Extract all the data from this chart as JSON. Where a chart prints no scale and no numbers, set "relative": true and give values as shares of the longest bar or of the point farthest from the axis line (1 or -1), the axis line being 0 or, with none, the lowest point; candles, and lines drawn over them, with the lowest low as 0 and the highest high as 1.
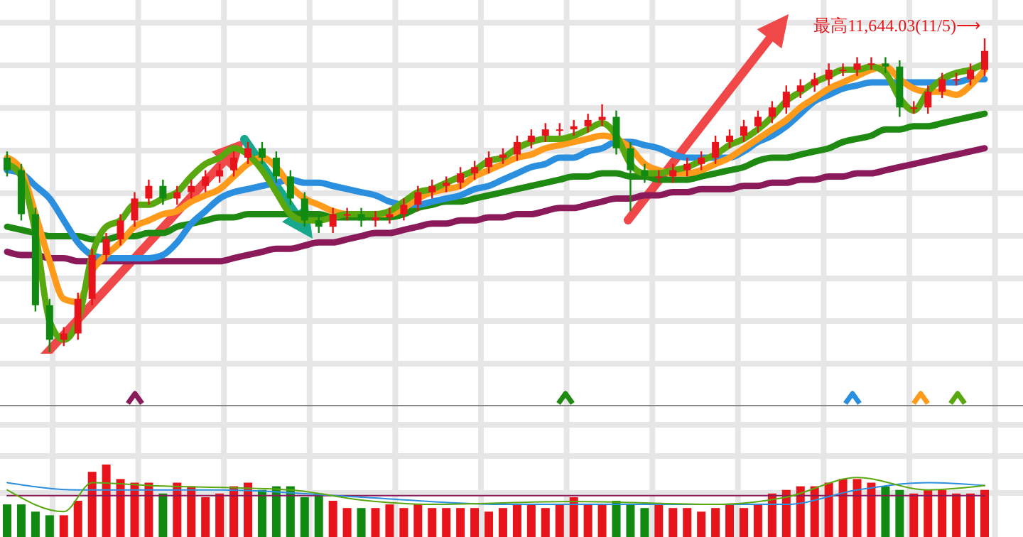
{
  "chart_data": [
    {
      "type": "candlestick",
      "relative": true,
      "grid": true,
      "categories": [
        null,
        null,
        null,
        null,
        null,
        null,
        null,
        null,
        null,
        null,
        null,
        null,
        null,
        null,
        null,
        null,
        null,
        null,
        null,
        null,
        null,
        null,
        null,
        null,
        null,
        null,
        null,
        null,
        null,
        null,
        null,
        null,
        null,
        null,
        null,
        null,
        null,
        null,
        null,
        null,
        null,
        null,
        null,
        null,
        null,
        null,
        null,
        null,
        null,
        null,
        null,
        null,
        null,
        null,
        null,
        null,
        null,
        null,
        null,
        null,
        null,
        null,
        null,
        null,
        null,
        null,
        null,
        null,
        null,
        null
      ],
      "ohlc": [
        [
          0.62,
          0.64,
          0.56,
          0.58
        ],
        [
          0.58,
          0.6,
          0.42,
          0.44
        ],
        [
          0.44,
          0.46,
          0.13,
          0.15
        ],
        [
          0.15,
          0.17,
          0,
          0.04
        ],
        [
          0.04,
          0.08,
          0.02,
          0.06
        ],
        [
          0.06,
          0.19,
          0.04,
          0.17
        ],
        [
          0.17,
          0.33,
          0.15,
          0.31
        ],
        [
          0.31,
          0.38,
          0.29,
          0.36
        ],
        [
          0.36,
          0.44,
          0.34,
          0.42
        ],
        [
          0.42,
          0.51,
          0.4,
          0.49
        ],
        [
          0.49,
          0.55,
          0.47,
          0.53
        ],
        [
          0.53,
          0.55,
          0.47,
          0.49
        ],
        [
          0.49,
          0.53,
          0.47,
          0.51
        ],
        [
          0.51,
          0.55,
          0.49,
          0.53
        ],
        [
          0.53,
          0.58,
          0.51,
          0.56
        ],
        [
          0.56,
          0.6,
          0.54,
          0.58
        ],
        [
          0.58,
          0.64,
          0.56,
          0.62
        ],
        [
          0.62,
          0.67,
          0.6,
          0.65
        ],
        [
          0.65,
          0.67,
          0.6,
          0.62
        ],
        [
          0.62,
          0.64,
          0.54,
          0.56
        ],
        [
          0.56,
          0.58,
          0.47,
          0.49
        ],
        [
          0.49,
          0.51,
          0.4,
          0.42
        ],
        [
          0.42,
          0.44,
          0.38,
          0.4
        ],
        [
          0.4,
          0.46,
          0.38,
          0.44
        ],
        [
          0.44,
          0.46,
          0.42,
          0.44
        ],
        [
          0.44,
          0.46,
          0.4,
          0.42
        ],
        [
          0.42,
          0.45,
          0.4,
          0.43
        ],
        [
          0.43,
          0.46,
          0.41,
          0.44
        ],
        [
          0.44,
          0.49,
          0.42,
          0.47
        ],
        [
          0.47,
          0.53,
          0.45,
          0.51
        ],
        [
          0.51,
          0.55,
          0.49,
          0.53
        ],
        [
          0.53,
          0.56,
          0.51,
          0.54
        ],
        [
          0.54,
          0.59,
          0.52,
          0.57
        ],
        [
          0.57,
          0.61,
          0.55,
          0.59
        ],
        [
          0.59,
          0.64,
          0.57,
          0.62
        ],
        [
          0.62,
          0.65,
          0.6,
          0.63
        ],
        [
          0.63,
          0.69,
          0.61,
          0.67
        ],
        [
          0.67,
          0.71,
          0.65,
          0.69
        ],
        [
          0.69,
          0.73,
          0.67,
          0.71
        ],
        [
          0.71,
          0.73,
          0.69,
          0.71
        ],
        [
          0.71,
          0.74,
          0.69,
          0.72
        ],
        [
          0.72,
          0.76,
          0.7,
          0.74
        ],
        [
          0.74,
          0.79,
          0.72,
          0.75
        ],
        [
          0.75,
          0.77,
          0.63,
          0.65
        ],
        [
          0.65,
          0.67,
          0.45,
          0.58
        ],
        [
          0.58,
          0.6,
          0.54,
          0.56
        ],
        [
          0.56,
          0.58,
          0.54,
          0.56
        ],
        [
          0.56,
          0.6,
          0.54,
          0.58
        ],
        [
          0.58,
          0.62,
          0.56,
          0.6
        ],
        [
          0.6,
          0.64,
          0.58,
          0.62
        ],
        [
          0.62,
          0.69,
          0.6,
          0.67
        ],
        [
          0.67,
          0.71,
          0.65,
          0.69
        ],
        [
          0.69,
          0.74,
          0.67,
          0.72
        ],
        [
          0.72,
          0.77,
          0.7,
          0.75
        ],
        [
          0.75,
          0.8,
          0.73,
          0.78
        ],
        [
          0.78,
          0.85,
          0.76,
          0.83
        ],
        [
          0.83,
          0.87,
          0.81,
          0.85
        ],
        [
          0.85,
          0.89,
          0.83,
          0.87
        ],
        [
          0.87,
          0.92,
          0.85,
          0.9
        ],
        [
          0.9,
          0.92,
          0.88,
          0.9
        ],
        [
          0.9,
          0.94,
          0.88,
          0.92
        ],
        [
          0.92,
          0.94,
          0.9,
          0.92
        ],
        [
          0.92,
          0.94,
          0.89,
          0.91
        ],
        [
          0.91,
          0.93,
          0.75,
          0.78
        ],
        [
          0.78,
          0.8,
          0.76,
          0.78
        ],
        [
          0.78,
          0.85,
          0.76,
          0.83
        ],
        [
          0.83,
          0.89,
          0.81,
          0.87
        ],
        [
          0.87,
          0.89,
          0.85,
          0.87
        ],
        [
          0.87,
          0.92,
          0.85,
          0.9
        ],
        [
          0.9,
          1,
          0.88,
          0.96
        ]
      ],
      "colors": [
        "#118a11",
        "#118a11",
        "#118a11",
        "#118a11",
        "#e8141b",
        "#e8141b",
        "#e8141b",
        "#e8141b",
        "#e8141b",
        "#e8141b",
        "#e8141b",
        "#118a11",
        "#e8141b",
        "#e8141b",
        "#e8141b",
        "#e8141b",
        "#e8141b",
        "#e8141b",
        "#118a11",
        "#118a11",
        "#118a11",
        "#118a11",
        "#118a11",
        "#e8141b",
        "#e8141b",
        "#118a11",
        "#e8141b",
        "#e8141b",
        "#e8141b",
        "#e8141b",
        "#e8141b",
        "#e8141b",
        "#e8141b",
        "#e8141b",
        "#e8141b",
        "#e8141b",
        "#e8141b",
        "#e8141b",
        "#e8141b",
        "#e8141b",
        "#e8141b",
        "#e8141b",
        "#e8141b",
        "#118a11",
        "#118a11",
        "#118a11",
        "#e8141b",
        "#e8141b",
        "#e8141b",
        "#e8141b",
        "#e8141b",
        "#e8141b",
        "#e8141b",
        "#e8141b",
        "#e8141b",
        "#e8141b",
        "#e8141b",
        "#e8141b",
        "#e8141b",
        "#e8141b",
        "#e8141b",
        "#e8141b",
        "#118a11",
        "#118a11",
        "#e8141b",
        "#e8141b",
        "#e8141b",
        "#e8141b",
        "#e8141b",
        "#e8141b"
      ],
      "series": [
        {
          "type": "line",
          "color": "#8a1a5a",
          "values": [
            0.32,
            0.31,
            0.31,
            0.3,
            0.3,
            0.29,
            0.29,
            0.29,
            0.29,
            0.29,
            0.29,
            0.29,
            0.29,
            0.29,
            0.29,
            0.29,
            0.3,
            0.31,
            0.32,
            0.33,
            0.33,
            0.34,
            0.35,
            0.35,
            0.36,
            0.37,
            0.38,
            0.38,
            0.39,
            0.4,
            0.41,
            0.41,
            0.42,
            0.42,
            0.43,
            0.43,
            0.44,
            0.44,
            0.45,
            0.46,
            0.46,
            0.47,
            0.48,
            0.49,
            0.49,
            0.5,
            0.5,
            0.51,
            0.51,
            0.52,
            0.52,
            0.52,
            0.53,
            0.53,
            0.54,
            0.54,
            0.55,
            0.55,
            0.56,
            0.56,
            0.57,
            0.57,
            0.58,
            0.59,
            0.6,
            0.61,
            0.62,
            0.63,
            0.64,
            0.65
          ]
        },
        {
          "type": "line",
          "color": "#1f8a12",
          "values": [
            0.4,
            0.39,
            0.38,
            0.37,
            0.37,
            0.37,
            0.36,
            0.36,
            0.37,
            0.37,
            0.38,
            0.38,
            0.4,
            0.41,
            0.42,
            0.43,
            0.43,
            0.44,
            0.44,
            0.44,
            0.44,
            0.44,
            0.44,
            0.43,
            0.43,
            0.43,
            0.43,
            0.43,
            0.44,
            0.46,
            0.47,
            0.48,
            0.48,
            0.49,
            0.5,
            0.51,
            0.52,
            0.53,
            0.54,
            0.55,
            0.56,
            0.56,
            0.57,
            0.57,
            0.56,
            0.56,
            0.55,
            0.55,
            0.55,
            0.56,
            0.57,
            0.58,
            0.59,
            0.61,
            0.62,
            0.62,
            0.63,
            0.64,
            0.65,
            0.67,
            0.68,
            0.69,
            0.71,
            0.71,
            0.72,
            0.72,
            0.73,
            0.74,
            0.75,
            0.76
          ]
        },
        {
          "type": "line",
          "color": "#2b8fe0",
          "values": [
            0.58,
            0.57,
            0.53,
            0.49,
            0.42,
            0.35,
            0.31,
            0.3,
            0.3,
            0.3,
            0.3,
            0.31,
            0.35,
            0.41,
            0.45,
            0.49,
            0.51,
            0.52,
            0.53,
            0.54,
            0.55,
            0.54,
            0.54,
            0.53,
            0.52,
            0.51,
            0.5,
            0.48,
            0.47,
            0.47,
            0.48,
            0.49,
            0.5,
            0.52,
            0.53,
            0.55,
            0.57,
            0.59,
            0.6,
            0.62,
            0.62,
            0.64,
            0.65,
            0.67,
            0.67,
            0.66,
            0.65,
            0.63,
            0.62,
            0.62,
            0.62,
            0.62,
            0.64,
            0.67,
            0.69,
            0.72,
            0.76,
            0.8,
            0.82,
            0.84,
            0.85,
            0.86,
            0.86,
            0.86,
            0.86,
            0.86,
            0.86,
            0.86,
            0.87,
            0.87
          ]
        },
        {
          "type": "line",
          "color": "#ff9a1a",
          "values": [
            0.62,
            0.58,
            0.44,
            0.29,
            0.17,
            0.16,
            0.26,
            0.31,
            0.35,
            0.4,
            0.42,
            0.44,
            0.45,
            0.48,
            0.5,
            0.52,
            0.56,
            0.6,
            0.62,
            0.59,
            0.53,
            0.49,
            0.47,
            0.45,
            0.44,
            0.44,
            0.44,
            0.44,
            0.46,
            0.49,
            0.51,
            0.52,
            0.53,
            0.56,
            0.58,
            0.6,
            0.62,
            0.63,
            0.65,
            0.66,
            0.67,
            0.68,
            0.69,
            0.68,
            0.65,
            0.6,
            0.58,
            0.57,
            0.57,
            0.58,
            0.6,
            0.62,
            0.65,
            0.68,
            0.71,
            0.74,
            0.78,
            0.81,
            0.84,
            0.86,
            0.88,
            0.9,
            0.91,
            0.87,
            0.84,
            0.83,
            0.83,
            0.82,
            0.85,
            0.9
          ]
        },
        {
          "type": "line",
          "color": "#5aa80f",
          "values": [
            0.6,
            0.56,
            0.38,
            0.1,
            0.04,
            0.1,
            0.31,
            0.4,
            0.42,
            0.47,
            0.47,
            0.49,
            0.51,
            0.56,
            0.6,
            0.62,
            0.65,
            0.63,
            0.58,
            0.51,
            0.44,
            0.42,
            0.42,
            0.43,
            0.44,
            0.44,
            0.44,
            0.45,
            0.48,
            0.51,
            0.52,
            0.54,
            0.56,
            0.58,
            0.61,
            0.62,
            0.65,
            0.67,
            0.68,
            0.68,
            0.69,
            0.71,
            0.73,
            0.69,
            0.6,
            0.57,
            0.57,
            0.58,
            0.59,
            0.61,
            0.63,
            0.66,
            0.68,
            0.71,
            0.75,
            0.8,
            0.83,
            0.86,
            0.88,
            0.9,
            0.9,
            0.91,
            0.89,
            0.81,
            0.77,
            0.83,
            0.87,
            0.89,
            0.9,
            0.92
          ]
        }
      ],
      "annotations": [
        "最高11,644.03(11/5)⟶"
      ]
    },
    {
      "type": "bar",
      "relative": true,
      "grid": true,
      "categories": [
        null,
        null,
        null,
        null,
        null,
        null,
        null,
        null,
        null,
        null,
        null,
        null,
        null,
        null,
        null,
        null,
        null,
        null,
        null,
        null,
        null,
        null,
        null,
        null,
        null,
        null,
        null,
        null,
        null,
        null,
        null,
        null,
        null,
        null,
        null,
        null,
        null,
        null,
        null,
        null,
        null,
        null,
        null,
        null,
        null,
        null,
        null,
        null,
        null,
        null,
        null,
        null,
        null,
        null,
        null,
        null,
        null,
        null,
        null,
        null,
        null,
        null,
        null,
        null,
        null,
        null,
        null,
        null,
        null,
        null
      ],
      "series": [
        {
          "values": [
            0.45,
            0.45,
            0.35,
            0.3,
            0.3,
            0.5,
            0.9,
            1,
            0.8,
            0.75,
            0.75,
            0.6,
            0.75,
            0.7,
            0.55,
            0.6,
            0.7,
            0.75,
            0.65,
            0.7,
            0.7,
            0.55,
            0.6,
            0.5,
            0.4,
            0.4,
            0.4,
            0.45,
            0.4,
            0.45,
            0.4,
            0.4,
            0.4,
            0.4,
            0.35,
            0.4,
            0.45,
            0.45,
            0.4,
            0.45,
            0.55,
            0.45,
            0.45,
            0.5,
            0.45,
            0.4,
            0.45,
            0.4,
            0.4,
            0.35,
            0.4,
            0.45,
            0.4,
            0.45,
            0.6,
            0.65,
            0.7,
            0.7,
            0.75,
            0.8,
            0.8,
            0.75,
            0.7,
            0.65,
            0.6,
            0.65,
            0.65,
            0.6,
            0.6,
            0.65
          ],
          "colors": [
            "#118a11",
            "#118a11",
            "#118a11",
            "#118a11",
            "#e8141b",
            "#e8141b",
            "#e8141b",
            "#e8141b",
            "#e8141b",
            "#e8141b",
            "#e8141b",
            "#118a11",
            "#e8141b",
            "#e8141b",
            "#e8141b",
            "#e8141b",
            "#e8141b",
            "#e8141b",
            "#118a11",
            "#118a11",
            "#118a11",
            "#118a11",
            "#118a11",
            "#e8141b",
            "#e8141b",
            "#118a11",
            "#e8141b",
            "#e8141b",
            "#e8141b",
            "#e8141b",
            "#e8141b",
            "#e8141b",
            "#e8141b",
            "#e8141b",
            "#e8141b",
            "#e8141b",
            "#e8141b",
            "#e8141b",
            "#e8141b",
            "#e8141b",
            "#e8141b",
            "#e8141b",
            "#e8141b",
            "#118a11",
            "#118a11",
            "#118a11",
            "#e8141b",
            "#e8141b",
            "#e8141b",
            "#e8141b",
            "#e8141b",
            "#e8141b",
            "#e8141b",
            "#e8141b",
            "#e8141b",
            "#e8141b",
            "#e8141b",
            "#e8141b",
            "#e8141b",
            "#e8141b",
            "#e8141b",
            "#e8141b",
            "#118a11",
            "#118a11",
            "#e8141b",
            "#e8141b",
            "#e8141b",
            "#e8141b",
            "#e8141b",
            "#e8141b"
          ]
        },
        {
          "type": "line",
          "color": "#8a1a5a",
          "values": [
            0.57,
            null,
            null,
            null,
            null,
            null,
            null,
            null,
            null,
            null,
            null,
            null,
            null,
            null,
            null,
            null,
            null,
            null,
            null,
            null,
            null,
            null,
            null,
            null,
            null,
            null,
            null,
            null,
            null,
            null,
            null,
            null,
            null,
            null,
            null,
            null,
            null,
            null,
            null,
            null,
            null,
            null,
            null,
            null,
            null,
            null,
            null,
            null,
            null,
            null,
            null,
            null,
            null,
            null,
            null,
            null,
            null,
            null,
            null,
            null,
            null,
            null,
            null,
            null,
            null,
            null,
            null,
            null,
            null,
            0.57
          ]
        },
        {
          "type": "line",
          "color": "#2b8fe0",
          "values": [
            0.75,
            null,
            null,
            null,
            null,
            0.65,
            null,
            null,
            null,
            null,
            null,
            null,
            null,
            null,
            null,
            0.65,
            null,
            null,
            null,
            null,
            null,
            null,
            null,
            null,
            null,
            0.55,
            null,
            null,
            null,
            null,
            null,
            null,
            null,
            null,
            null,
            0.45,
            null,
            null,
            null,
            null,
            null,
            null,
            null,
            null,
            null,
            0.45,
            null,
            null,
            null,
            null,
            null,
            null,
            null,
            null,
            null,
            0.45,
            null,
            null,
            null,
            null,
            0.65,
            null,
            null,
            null,
            null,
            0.75,
            null,
            null,
            null,
            0.71
          ]
        },
        {
          "type": "line",
          "color": "#5aa80f",
          "values": [
            0.65,
            null,
            null,
            null,
            0.35,
            null,
            0.75,
            null,
            null,
            null,
            0.71,
            null,
            null,
            null,
            null,
            null,
            null,
            null,
            null,
            null,
            0.65,
            null,
            null,
            null,
            null,
            0.51,
            null,
            null,
            null,
            null,
            0.45,
            null,
            null,
            null,
            null,
            null,
            null,
            null,
            null,
            null,
            0.49,
            null,
            null,
            null,
            null,
            null,
            null,
            null,
            null,
            null,
            0.45,
            null,
            null,
            null,
            null,
            0.55,
            null,
            null,
            null,
            null,
            0.82,
            null,
            null,
            null,
            null,
            0.65,
            null,
            null,
            null,
            0.71
          ]
        }
      ]
    }
  ]
}
